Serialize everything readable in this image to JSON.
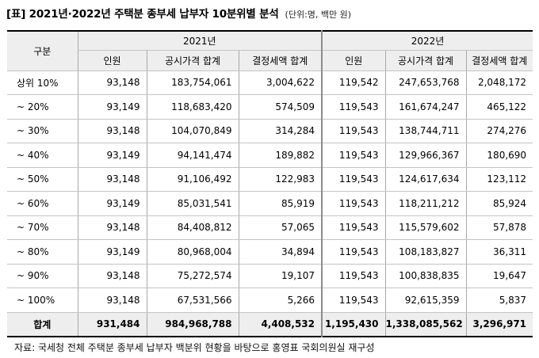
{
  "title": "[표] 2021년·2022년 주택분 종부세 납부자 10분위별 분석",
  "unit": "(단위:명, 백만 원)",
  "table": {
    "group_header": "구분",
    "years": [
      "2021년",
      "2022년"
    ],
    "columns": [
      "인원",
      "공시가격 합계",
      "결정세액 합계"
    ],
    "rows": [
      {
        "label": "상위 10%",
        "v": [
          "93,148",
          "183,754,061",
          "3,004,622",
          "119,542",
          "247,653,768",
          "2,048,172"
        ]
      },
      {
        "label": "~ 20%",
        "v": [
          "93,149",
          "118,683,420",
          "574,509",
          "119,543",
          "161,674,247",
          "465,122"
        ]
      },
      {
        "label": "~ 30%",
        "v": [
          "93,148",
          "104,070,849",
          "314,284",
          "119,543",
          "138,744,711",
          "274,276"
        ]
      },
      {
        "label": "~ 40%",
        "v": [
          "93,149",
          "94,141,474",
          "189,882",
          "119,543",
          "129,966,367",
          "180,690"
        ]
      },
      {
        "label": "~ 50%",
        "v": [
          "93,148",
          "91,106,492",
          "122,983",
          "119,543",
          "124,617,634",
          "123,112"
        ]
      },
      {
        "label": "~ 60%",
        "v": [
          "93,149",
          "85,031,541",
          "85,919",
          "119,543",
          "118,211,212",
          "85,924"
        ]
      },
      {
        "label": "~ 70%",
        "v": [
          "93,148",
          "84,408,812",
          "57,065",
          "119,543",
          "115,579,602",
          "57,878"
        ]
      },
      {
        "label": "~ 80%",
        "v": [
          "93,149",
          "80,968,004",
          "34,894",
          "119,543",
          "108,183,827",
          "36,311"
        ]
      },
      {
        "label": "~ 90%",
        "v": [
          "93,148",
          "75,272,574",
          "19,107",
          "119,543",
          "100,838,835",
          "19,647"
        ]
      },
      {
        "label": "~ 100%",
        "v": [
          "93,148",
          "67,531,566",
          "5,266",
          "119,543",
          "92,615,359",
          "5,837"
        ]
      }
    ],
    "total": {
      "label": "합계",
      "v": [
        "931,484",
        "984,968,788",
        "4,408,532",
        "1,195,430",
        "1,338,085,562",
        "3,296,971"
      ]
    }
  },
  "source": "자료: 국세청 전체 주택분 종부세 납부자 백분위 현황을 바탕으로 홍영표 국회의원실 재구성"
}
